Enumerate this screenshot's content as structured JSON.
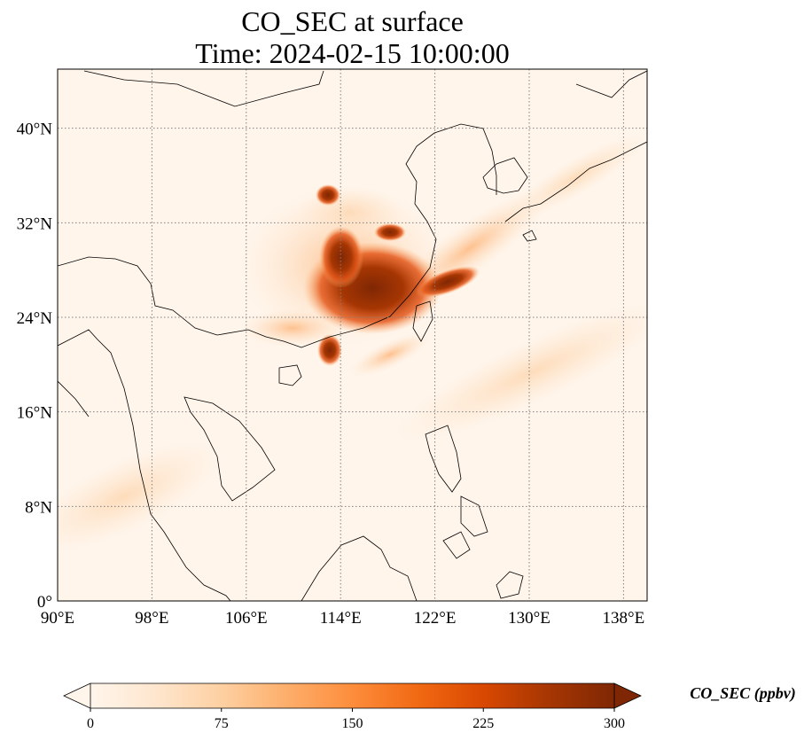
{
  "title": {
    "line1": "CO_SEC at surface",
    "line2": "Time: 2024-02-15 10:00:00"
  },
  "map": {
    "lon_range": [
      90,
      140
    ],
    "lat_range": [
      0,
      45
    ],
    "x_ticks": [
      "90°E",
      "98°E",
      "106°E",
      "114°E",
      "122°E",
      "130°E",
      "138°E"
    ],
    "y_ticks": [
      "0°",
      "8°N",
      "16°N",
      "24°N",
      "32°N",
      "40°N"
    ],
    "x_tick_values": [
      90,
      98,
      106,
      114,
      122,
      130,
      138
    ],
    "y_tick_values": [
      0,
      8,
      16,
      24,
      32,
      40
    ],
    "gridlines": "dotted"
  },
  "colorbar": {
    "label": "CO_SEC (ppbv)",
    "ticks": [
      "0",
      "75",
      "150",
      "225",
      "300"
    ],
    "tick_values": [
      0,
      75,
      150,
      225,
      300
    ],
    "range": [
      0,
      300
    ],
    "extend": "both",
    "colormap": [
      "#fff5eb",
      "#fee6ce",
      "#fdd0a2",
      "#fdae6b",
      "#fd8d3c",
      "#f16913",
      "#d94801",
      "#a63603",
      "#7f2704"
    ]
  }
}
